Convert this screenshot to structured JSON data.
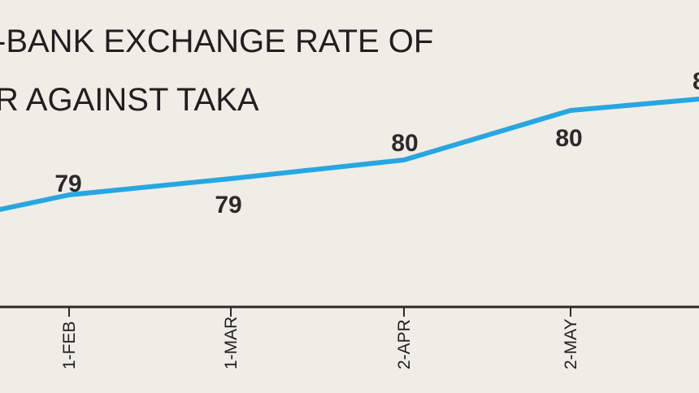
{
  "chart_data": {
    "type": "line",
    "title_lines": [
      "-BANK EXCHANGE RATE OF",
      "R AGAINST TAKA"
    ],
    "categories": [
      "1-FEB",
      "1-MAR",
      "2-APR",
      "2-MAY"
    ],
    "series": [
      {
        "values": [
          79,
          79,
          80,
          80
        ],
        "data_labels": [
          "79",
          "79",
          "80",
          "80"
        ]
      }
    ],
    "partial_label": "8",
    "xlabel": "",
    "ylabel": "",
    "line_color": "#27a6e2",
    "axis_color": "#2b2b2b",
    "background": "#efede5",
    "grid": false
  }
}
